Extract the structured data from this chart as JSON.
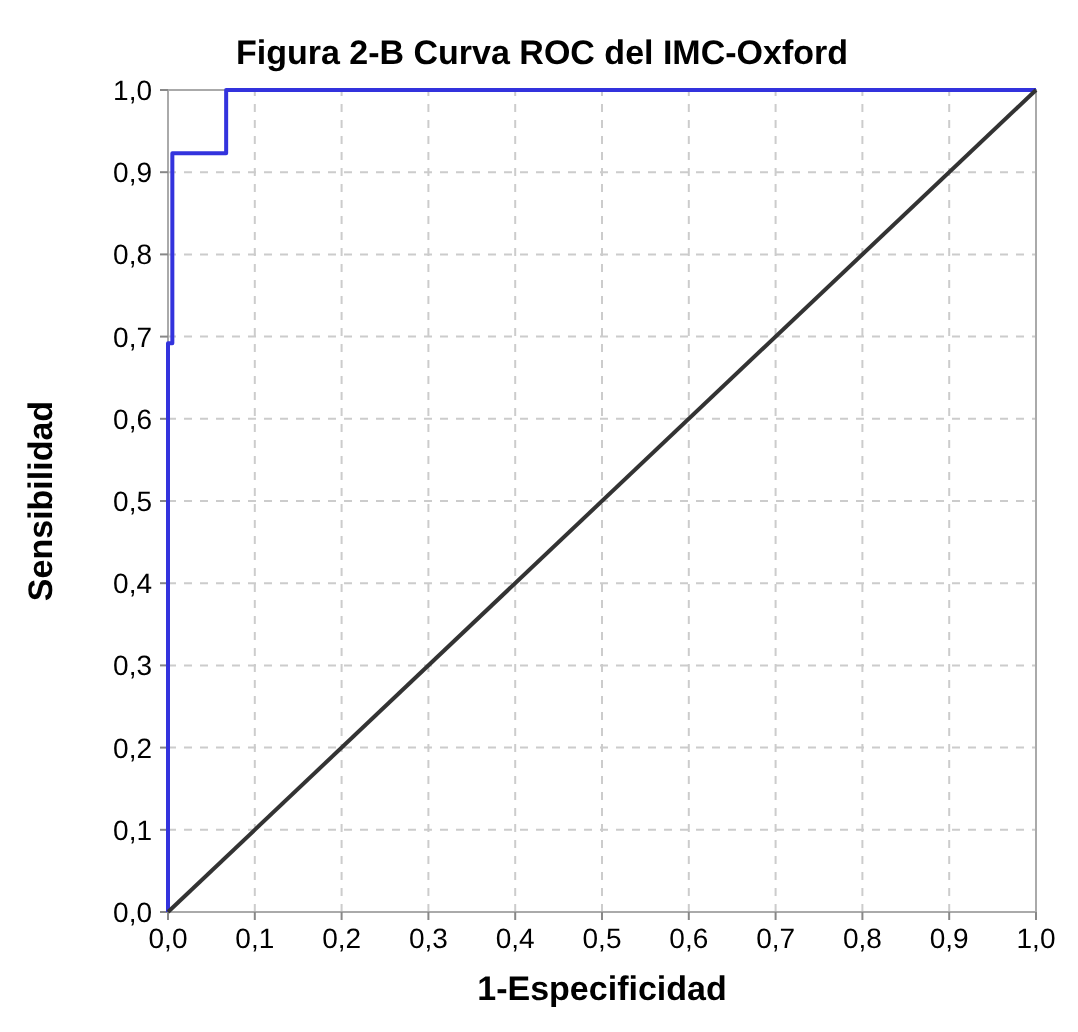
{
  "chart_data": {
    "type": "line",
    "title": "Figura 2-B Curva ROC del IMC-Oxford",
    "xlabel": "1-Especificidad",
    "ylabel": "Sensibilidad",
    "series": [
      {
        "color": "#3333dd",
        "x": [
          0,
          0,
          0.005,
          0.005,
          0.067,
          0.067,
          1
        ],
        "values": [
          0,
          0.692,
          0.692,
          0.923,
          0.923,
          1,
          1
        ]
      },
      {
        "color": "#333333",
        "x": [
          0,
          1
        ],
        "values": [
          0,
          1
        ]
      }
    ],
    "xlim": [
      0,
      1
    ],
    "ylim": [
      0,
      1
    ],
    "xticks": [
      {
        "value": 0,
        "label": "0,0"
      },
      {
        "value": 0.1,
        "label": "0,1"
      },
      {
        "value": 0.2,
        "label": "0,2"
      },
      {
        "value": 0.3,
        "label": "0,3"
      },
      {
        "value": 0.4,
        "label": "0,4"
      },
      {
        "value": 0.5,
        "label": "0,5"
      },
      {
        "value": 0.6,
        "label": "0,6"
      },
      {
        "value": 0.7,
        "label": "0,7"
      },
      {
        "value": 0.8,
        "label": "0,8"
      },
      {
        "value": 0.9,
        "label": "0,9"
      },
      {
        "value": 1,
        "label": "1,0"
      }
    ],
    "yticks": [
      {
        "value": 0,
        "label": "0,0"
      },
      {
        "value": 0.1,
        "label": "0,1"
      },
      {
        "value": 0.2,
        "label": "0,2"
      },
      {
        "value": 0.3,
        "label": "0,3"
      },
      {
        "value": 0.4,
        "label": "0,4"
      },
      {
        "value": 0.5,
        "label": "0,5"
      },
      {
        "value": 0.6,
        "label": "0,6"
      },
      {
        "value": 0.7,
        "label": "0,7"
      },
      {
        "value": 0.8,
        "label": "0,8"
      },
      {
        "value": 0.9,
        "label": "0,9"
      },
      {
        "value": 1,
        "label": "1,0"
      }
    ],
    "grid": true,
    "line_style": "solid",
    "marker": "none"
  }
}
